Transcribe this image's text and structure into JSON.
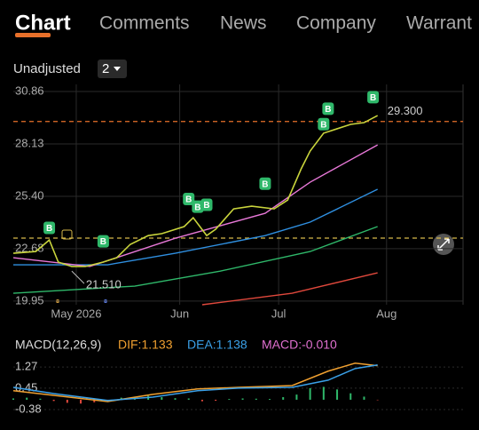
{
  "tabs": [
    {
      "label": "Chart",
      "active": true
    },
    {
      "label": "Comments",
      "active": false
    },
    {
      "label": "News",
      "active": false
    },
    {
      "label": "Company",
      "active": false
    },
    {
      "label": "Warrant",
      "active": false
    }
  ],
  "toolbar": {
    "adjust": "Unadjusted",
    "period": "2"
  },
  "price_chart": {
    "xlim": [
      0,
      100
    ],
    "ylim": [
      19.76,
      31.23
    ],
    "yticks": [
      30.86,
      28.13,
      {
        "value": 25.4,
        "label": "25.40"
      },
      22.68,
      19.95
    ],
    "xticks": [
      {
        "value": 14,
        "label": "May 2026"
      },
      {
        "value": 37,
        "label": "Jun"
      },
      {
        "value": 59,
        "label": "Jul"
      },
      {
        "value": 83,
        "label": "Aug"
      }
    ],
    "series": [
      {
        "color": "#c9d43c",
        "x": [
          0,
          5,
          8,
          10,
          13,
          16,
          20,
          23,
          26,
          30,
          33,
          38,
          40,
          43,
          45,
          49,
          53,
          58,
          61,
          64,
          66,
          69,
          72,
          75,
          78,
          81
        ],
        "values": [
          22.44,
          22.53,
          23.13,
          21.98,
          21.75,
          21.75,
          21.98,
          22.21,
          22.9,
          23.36,
          23.46,
          23.83,
          24.29,
          23.36,
          23.69,
          24.75,
          24.89,
          24.75,
          25.21,
          26.83,
          27.76,
          28.69,
          28.92,
          29.15,
          29.24,
          29.61
        ]
      },
      {
        "color": "#e878d8",
        "x": [
          0,
          17,
          36,
          56,
          66,
          81
        ],
        "values": [
          22.21,
          21.75,
          23.22,
          24.52,
          26.14,
          28.08
        ]
      },
      {
        "color": "#2f8fe0",
        "x": [
          0,
          21,
          36,
          56,
          66,
          81
        ],
        "values": [
          21.84,
          21.84,
          22.44,
          23.36,
          24.06,
          25.77
        ]
      },
      {
        "color": "#2fb86a",
        "x": [
          0,
          27,
          46,
          66,
          81
        ],
        "values": [
          20.36,
          20.73,
          21.51,
          22.53,
          23.83
        ]
      },
      {
        "color": "#e0483c",
        "x": [
          42,
          62,
          81
        ],
        "values": [
          19.76,
          20.36,
          21.42
        ]
      }
    ],
    "signals": [
      {
        "x": 8,
        "price": 23.3,
        "label": "B"
      },
      {
        "x": 20,
        "price": 22.6,
        "label": "B"
      },
      {
        "x": 39,
        "price": 24.8,
        "label": "B"
      },
      {
        "x": 41,
        "price": 24.4,
        "label": "B"
      },
      {
        "x": 43,
        "price": 24.5,
        "label": "B"
      },
      {
        "x": 56,
        "price": 25.6,
        "label": "B"
      },
      {
        "x": 69,
        "price": 28.7,
        "label": "B"
      },
      {
        "x": 70,
        "price": 29.5,
        "label": "B"
      },
      {
        "x": 80,
        "price": 30.1,
        "label": "B"
      }
    ],
    "price_lines": [
      {
        "value": 29.3,
        "label": "29.300",
        "color": "#e8702a"
      },
      {
        "value": 23.23,
        "color": "#d6b84a"
      }
    ],
    "annotation": {
      "x": 13,
      "value": 21.51,
      "label": "21.510"
    }
  },
  "macd": {
    "title": "MACD(12,26,9)",
    "legend": [
      {
        "text": "DIF:1.133",
        "color": "#f0a030"
      },
      {
        "text": "DEA:1.138",
        "color": "#3aa0e8"
      },
      {
        "text": "MACD:-0.010",
        "color": "#e070d0"
      }
    ],
    "xlim": [
      0,
      100
    ],
    "ylim": [
      -0.52,
      1.55
    ],
    "yticks": [
      1.27,
      0.45,
      -0.38
    ],
    "lines": [
      {
        "color": "#f0a030",
        "x": [
          0,
          9,
          21,
          31,
          41,
          50,
          62,
          70,
          76,
          81
        ],
        "values": [
          0.35,
          0.17,
          -0.07,
          0.21,
          0.42,
          0.48,
          0.55,
          1.11,
          1.42,
          1.32
        ]
      },
      {
        "color": "#3aa0e8",
        "x": [
          0,
          9,
          21,
          31,
          41,
          50,
          62,
          70,
          76,
          81
        ],
        "values": [
          0.48,
          0.24,
          -0.03,
          0.1,
          0.35,
          0.45,
          0.48,
          0.76,
          1.21,
          1.35
        ]
      }
    ],
    "histogram": {
      "up_color": "#2fb86a",
      "down_color": "#e0483c",
      "x": [
        0,
        3,
        6,
        9,
        12,
        15,
        18,
        21,
        24,
        27,
        30,
        33,
        36,
        39,
        42,
        45,
        48,
        51,
        54,
        57,
        60,
        63,
        66,
        69,
        72,
        75,
        78,
        81
      ],
      "values": [
        0.05,
        0.08,
        0.04,
        -0.05,
        -0.12,
        -0.15,
        -0.1,
        -0.05,
        0.08,
        0.12,
        0.15,
        0.1,
        0.06,
        0.05,
        -0.06,
        -0.04,
        0.03,
        0.05,
        0.04,
        0.03,
        0.1,
        0.2,
        0.45,
        0.5,
        0.4,
        0.25,
        0.12,
        -0.01
      ]
    }
  }
}
